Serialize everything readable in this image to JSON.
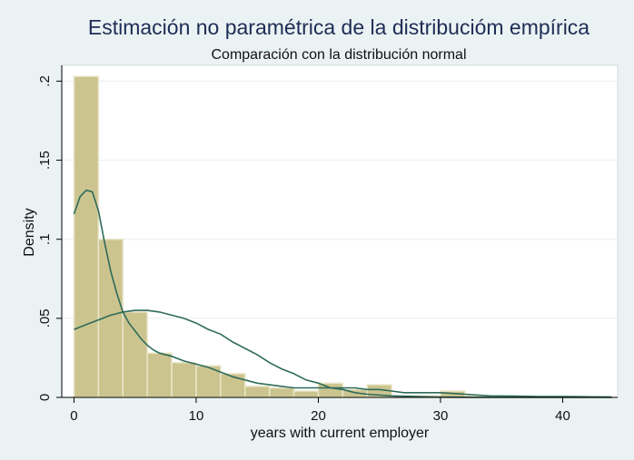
{
  "chart_data": {
    "type": "bar",
    "title": "Estimación no paramétrica de la distribucióm empírica",
    "subtitle": "Comparación con la distribución normal",
    "xlabel": "years with current employer",
    "ylabel": "Density",
    "xlim": [
      -1,
      44.5
    ],
    "ylim": [
      0,
      0.21
    ],
    "x_ticks": [
      0,
      10,
      20,
      30,
      40
    ],
    "x_tick_labels": [
      "0",
      "10",
      "20",
      "30",
      "40"
    ],
    "y_ticks": [
      0,
      0.05,
      0.1,
      0.15,
      0.2
    ],
    "y_tick_labels": [
      "0",
      ".05",
      ".1",
      ".15",
      ".2"
    ],
    "grid": true,
    "bin_width": 2,
    "bin_starts": [
      0,
      2,
      4,
      6,
      8,
      10,
      12,
      14,
      16,
      18,
      20,
      22,
      24,
      26,
      28,
      30,
      32,
      34,
      36,
      38,
      40,
      42
    ],
    "values": [
      0.203,
      0.1,
      0.054,
      0.028,
      0.022,
      0.02,
      0.015,
      0.007,
      0.006,
      0.004,
      0.009,
      0.005,
      0.008,
      0.001,
      0.001,
      0.004,
      0.001,
      0.0005,
      0.0005,
      0.0003,
      0.0005,
      0.0003
    ],
    "series": [
      {
        "x": [
          0,
          0.5,
          1,
          1.5,
          2,
          2.5,
          3,
          3.5,
          4,
          4.5,
          5,
          5.5,
          6,
          6.5,
          7,
          8,
          9,
          10,
          11,
          12,
          13,
          14,
          15,
          16,
          17,
          18,
          19,
          20,
          21,
          22,
          23,
          24,
          25,
          26,
          27,
          28,
          29,
          30,
          32,
          34,
          36,
          38,
          40,
          42,
          44
        ],
        "values": [
          0.116,
          0.127,
          0.131,
          0.13,
          0.118,
          0.098,
          0.08,
          0.066,
          0.054,
          0.047,
          0.042,
          0.037,
          0.033,
          0.03,
          0.028,
          0.026,
          0.023,
          0.021,
          0.019,
          0.016,
          0.013,
          0.011,
          0.009,
          0.008,
          0.007,
          0.006,
          0.006,
          0.006,
          0.006,
          0.006,
          0.006,
          0.005,
          0.005,
          0.004,
          0.003,
          0.003,
          0.003,
          0.003,
          0.002,
          0.001,
          0.0008,
          0.0006,
          0.0005,
          0.0004,
          0.0003
        ]
      },
      {
        "x": [
          0,
          1,
          2,
          3,
          4,
          5,
          5.5,
          6,
          7,
          8,
          9,
          10,
          11,
          12,
          13,
          14,
          15,
          16,
          17,
          18,
          19,
          20,
          21,
          22,
          23,
          24,
          26,
          28,
          30,
          32,
          34,
          36,
          38,
          40,
          42,
          44
        ],
        "values": [
          0.043,
          0.046,
          0.049,
          0.052,
          0.054,
          0.055,
          0.055,
          0.055,
          0.054,
          0.052,
          0.05,
          0.047,
          0.043,
          0.04,
          0.035,
          0.031,
          0.027,
          0.022,
          0.018,
          0.015,
          0.011,
          0.009,
          0.006,
          0.005,
          0.003,
          0.002,
          0.001,
          0.0005,
          0.0002,
          0.0001,
          0,
          0,
          0,
          0,
          0,
          0
        ]
      }
    ],
    "colors": {
      "bar_fill": "#ccc48f",
      "bar_edge": "#e9e6c8",
      "line": "#2e6b5b",
      "plot_bg": "#ffffff",
      "page_bg": "#eaf2f3",
      "grid": "#e6eeef",
      "title": "#1e2d55"
    }
  }
}
